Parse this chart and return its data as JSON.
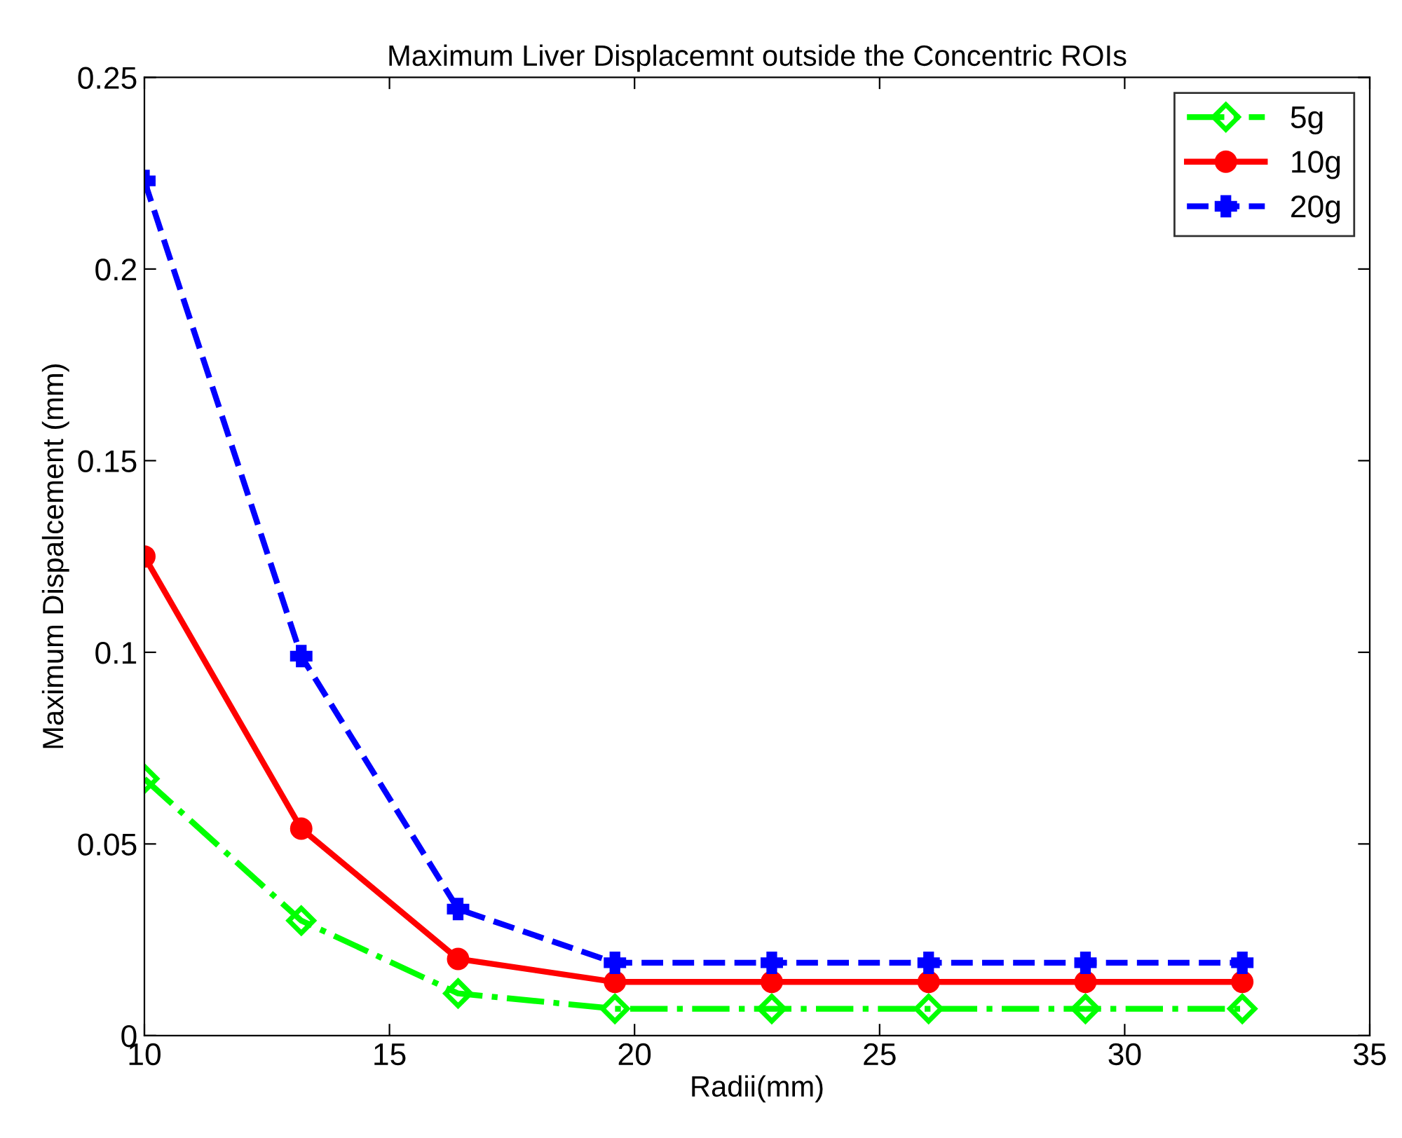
{
  "chart_data": {
    "type": "line",
    "title": "Maximum Liver Displacemnt outside the Concentric ROIs",
    "xlabel": "Radii(mm)",
    "ylabel": "Maximum Dispalcement (mm)",
    "x": [
      10,
      13.2,
      16.4,
      19.6,
      22.8,
      26,
      29.2,
      32.4
    ],
    "series": [
      {
        "name": "5g",
        "color": "#00ff00",
        "marker": "diamond",
        "line_style": "dashdot",
        "values": [
          0.067,
          0.03,
          0.011,
          0.007,
          0.007,
          0.007,
          0.007,
          0.007
        ]
      },
      {
        "name": "10g",
        "color": "#ff0000",
        "marker": "circle",
        "line_style": "solid",
        "values": [
          0.125,
          0.054,
          0.02,
          0.014,
          0.014,
          0.014,
          0.014,
          0.014
        ]
      },
      {
        "name": "20g",
        "color": "#0000ff",
        "marker": "cross",
        "line_style": "dashed",
        "values": [
          0.223,
          0.099,
          0.033,
          0.019,
          0.019,
          0.019,
          0.019,
          0.019
        ]
      }
    ],
    "xlim": [
      10,
      35
    ],
    "xticks": [
      10,
      15,
      20,
      25,
      30,
      35
    ],
    "ylim": [
      0,
      0.25
    ],
    "yticks": [
      0,
      0.05,
      0.1,
      0.15,
      0.2,
      0.25
    ],
    "grid": false,
    "legend": "top right"
  }
}
